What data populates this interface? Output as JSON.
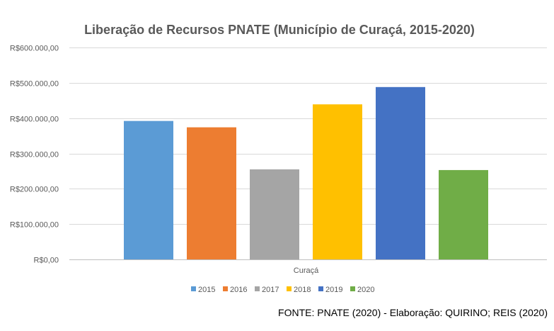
{
  "chart_data": {
    "type": "bar",
    "title": "Liberação de Recursos PNATE (Município de Curaçá, 2015-2020)",
    "categories": [
      "Curaçá"
    ],
    "series": [
      {
        "name": "2015",
        "values": [
          392000
        ],
        "color": "#5B9BD5"
      },
      {
        "name": "2016",
        "values": [
          374000
        ],
        "color": "#ED7D31"
      },
      {
        "name": "2017",
        "values": [
          255000
        ],
        "color": "#A5A5A5"
      },
      {
        "name": "2018",
        "values": [
          439000
        ],
        "color": "#FFC000"
      },
      {
        "name": "2019",
        "values": [
          488000
        ],
        "color": "#4472C4"
      },
      {
        "name": "2020",
        "values": [
          253000
        ],
        "color": "#70AD47"
      }
    ],
    "ylim": [
      0,
      600000
    ],
    "yticks": [
      0,
      100000,
      200000,
      300000,
      400000,
      500000,
      600000
    ],
    "ytick_labels": [
      "R$0,00",
      "R$100.000,00",
      "R$200.000,00",
      "R$300.000,00",
      "R$400.000,00",
      "R$500.000,00",
      "R$600.000,00"
    ],
    "grid": true,
    "legend": "bottom"
  },
  "source_note": "FONTE: PNATE (2020) - Elaboração: QUIRINO; REIS (2020)"
}
